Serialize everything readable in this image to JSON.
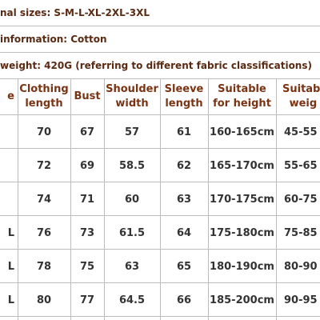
{
  "info": [
    "nal sizes: S-M-L-XL-2XL-3XL",
    "information: Cotton",
    "weight: 420G (referring to different fabric classifications)"
  ],
  "table": {
    "header": [
      "e",
      "Clothing length",
      "Bust",
      "Shoulder width",
      "Sleeve length",
      "Suitable for height",
      "Suitabl weig"
    ],
    "rows": [
      {
        "values": [
          "70",
          "67",
          "57",
          "61",
          "160-165cm",
          "45-55"
        ]
      },
      {
        "values": [
          "72",
          "69",
          "58.5",
          "62",
          "165-170cm",
          "55-65"
        ]
      },
      {
        "values": [
          "74",
          "71",
          "60",
          "63",
          "170-175cm",
          "60-75"
        ]
      },
      {
        "size": "L",
        "values": [
          "76",
          "73",
          "61.5",
          "64",
          "175-180cm",
          "75-85"
        ]
      },
      {
        "size": "L",
        "values": [
          "78",
          "75",
          "63",
          "65",
          "180-190cm",
          "80-90"
        ]
      },
      {
        "size": "L",
        "values": [
          "80",
          "77",
          "64.5",
          "66",
          "185-200cm",
          "90-95"
        ]
      }
    ]
  }
}
